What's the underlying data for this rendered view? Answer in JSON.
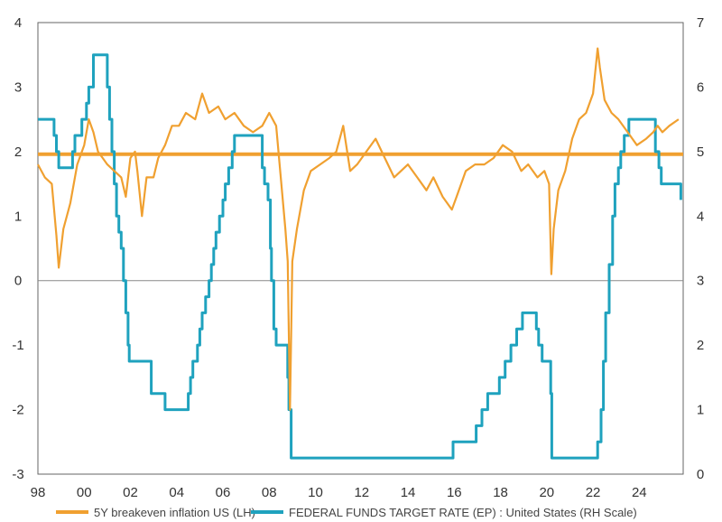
{
  "chart_data": {
    "type": "line",
    "legend": {
      "position": "bottom"
    },
    "grid": false,
    "colors": {
      "breakeven": "#F0A030",
      "fed_funds": "#1FA2BE",
      "zero_line": "#888888",
      "mean_line": "#F0A030"
    },
    "x_axis": {
      "range": [
        1998,
        2025.9
      ],
      "ticks": [
        {
          "value": 1998,
          "label": "98"
        },
        {
          "value": 2000,
          "label": "00"
        },
        {
          "value": 2002,
          "label": "02"
        },
        {
          "value": 2004,
          "label": "04"
        },
        {
          "value": 2006,
          "label": "06"
        },
        {
          "value": 2008,
          "label": "08"
        },
        {
          "value": 2010,
          "label": "10"
        },
        {
          "value": 2012,
          "label": "12"
        },
        {
          "value": 2014,
          "label": "14"
        },
        {
          "value": 2016,
          "label": "16"
        },
        {
          "value": 2018,
          "label": "18"
        },
        {
          "value": 2020,
          "label": "20"
        },
        {
          "value": 2022,
          "label": "22"
        },
        {
          "value": 2024,
          "label": "24"
        }
      ]
    },
    "y_left": {
      "range": [
        -3,
        4
      ],
      "ticks": [
        "4",
        "3",
        "2",
        "1",
        "0",
        "-1",
        "-2",
        "-3"
      ]
    },
    "y_right": {
      "range": [
        0,
        7
      ],
      "ticks": [
        "7",
        "6",
        "5",
        "4",
        "3",
        "2",
        "1",
        "0"
      ]
    },
    "reference_lines": [
      {
        "axis": "left",
        "value": 0,
        "kind": "zero"
      },
      {
        "axis": "left",
        "value": 1.96,
        "kind": "average"
      }
    ],
    "series": [
      {
        "name": "5Y breakeven inflation US (LH)",
        "axis": "left",
        "x": [
          1998.0,
          1998.3,
          1998.6,
          1998.8,
          1998.9,
          1999.1,
          1999.4,
          1999.7,
          2000.0,
          2000.2,
          2000.4,
          2000.6,
          2000.8,
          2001.0,
          2001.3,
          2001.6,
          2001.8,
          2002.0,
          2002.2,
          2002.3,
          2002.5,
          2002.7,
          2003.0,
          2003.2,
          2003.5,
          2003.8,
          2004.1,
          2004.4,
          2004.8,
          2005.1,
          2005.4,
          2005.8,
          2006.1,
          2006.5,
          2006.9,
          2007.3,
          2007.7,
          2008.0,
          2008.3,
          2008.5,
          2008.7,
          2008.8,
          2008.9,
          2009.0,
          2009.2,
          2009.5,
          2009.8,
          2010.2,
          2010.6,
          2010.9,
          2011.2,
          2011.5,
          2011.8,
          2012.2,
          2012.6,
          2013.0,
          2013.4,
          2013.7,
          2014.0,
          2014.4,
          2014.8,
          2015.1,
          2015.5,
          2015.9,
          2016.1,
          2016.5,
          2016.9,
          2017.3,
          2017.7,
          2018.1,
          2018.5,
          2018.9,
          2019.2,
          2019.6,
          2019.9,
          2020.1,
          2020.2,
          2020.3,
          2020.5,
          2020.8,
          2021.1,
          2021.4,
          2021.7,
          2022.0,
          2022.2,
          2022.3,
          2022.5,
          2022.8,
          2023.1,
          2023.5,
          2023.9,
          2024.3,
          2024.6,
          2024.8,
          2025.0,
          2025.3,
          2025.7
        ],
        "y": [
          1.8,
          1.6,
          1.5,
          0.7,
          0.2,
          0.8,
          1.2,
          1.8,
          2.1,
          2.5,
          2.3,
          2.0,
          1.9,
          1.8,
          1.7,
          1.6,
          1.3,
          1.9,
          2.0,
          1.7,
          1.0,
          1.6,
          1.6,
          1.9,
          2.1,
          2.4,
          2.4,
          2.6,
          2.5,
          2.9,
          2.6,
          2.7,
          2.5,
          2.6,
          2.4,
          2.3,
          2.4,
          2.6,
          2.4,
          1.6,
          0.8,
          0.3,
          -2.0,
          0.3,
          0.8,
          1.4,
          1.7,
          1.8,
          1.9,
          2.0,
          2.4,
          1.7,
          1.8,
          2.0,
          2.2,
          1.9,
          1.6,
          1.7,
          1.8,
          1.6,
          1.4,
          1.6,
          1.3,
          1.1,
          1.3,
          1.7,
          1.8,
          1.8,
          1.9,
          2.1,
          2.0,
          1.7,
          1.8,
          1.6,
          1.7,
          1.5,
          0.1,
          0.8,
          1.4,
          1.7,
          2.2,
          2.5,
          2.6,
          2.9,
          3.6,
          3.3,
          2.8,
          2.6,
          2.5,
          2.3,
          2.1,
          2.2,
          2.3,
          2.4,
          2.3,
          2.4,
          2.5
        ]
      },
      {
        "name": "FEDERAL FUNDS TARGET RATE (EP) : United States (RH Scale)",
        "axis": "right",
        "x": [
          1998.0,
          1998.7,
          1998.7,
          1998.8,
          1998.8,
          1998.9,
          1998.9,
          1999.5,
          1999.5,
          1999.6,
          1999.6,
          1999.9,
          1999.9,
          2000.1,
          2000.1,
          2000.2,
          2000.2,
          2000.4,
          2000.4,
          2001.0,
          2001.0,
          2001.1,
          2001.1,
          2001.2,
          2001.2,
          2001.3,
          2001.3,
          2001.4,
          2001.4,
          2001.5,
          2001.5,
          2001.6,
          2001.6,
          2001.7,
          2001.7,
          2001.8,
          2001.8,
          2001.9,
          2001.9,
          2001.95,
          2001.95,
          2002.9,
          2002.9,
          2003.5,
          2003.5,
          2004.5,
          2004.5,
          2004.6,
          2004.6,
          2004.7,
          2004.7,
          2004.9,
          2004.9,
          2005.0,
          2005.0,
          2005.1,
          2005.1,
          2005.25,
          2005.25,
          2005.4,
          2005.4,
          2005.5,
          2005.5,
          2005.6,
          2005.6,
          2005.7,
          2005.7,
          2005.85,
          2005.85,
          2006.0,
          2006.0,
          2006.1,
          2006.1,
          2006.25,
          2006.25,
          2006.4,
          2006.4,
          2006.5,
          2006.5,
          2007.7,
          2007.7,
          2007.8,
          2007.8,
          2007.95,
          2007.95,
          2008.05,
          2008.05,
          2008.1,
          2008.1,
          2008.2,
          2008.2,
          2008.3,
          2008.3,
          2008.8,
          2008.8,
          2008.85,
          2008.85,
          2008.95,
          2008.95,
          2015.95,
          2015.95,
          2016.95,
          2016.95,
          2017.2,
          2017.2,
          2017.45,
          2017.45,
          2017.95,
          2017.95,
          2018.2,
          2018.2,
          2018.45,
          2018.45,
          2018.7,
          2018.7,
          2018.95,
          2018.95,
          2019.55,
          2019.55,
          2019.65,
          2019.65,
          2019.8,
          2019.8,
          2020.17,
          2020.17,
          2020.22,
          2020.22,
          2022.2,
          2022.2,
          2022.35,
          2022.35,
          2022.45,
          2022.45,
          2022.55,
          2022.55,
          2022.7,
          2022.7,
          2022.85,
          2022.85,
          2022.95,
          2022.95,
          2023.1,
          2023.1,
          2023.2,
          2023.2,
          2023.35,
          2023.35,
          2023.55,
          2023.55,
          2024.7,
          2024.7,
          2024.85,
          2024.85,
          2024.95,
          2024.95,
          2025.8,
          2025.8
        ],
        "y": [
          5.5,
          5.5,
          5.25,
          5.25,
          5.0,
          5.0,
          4.75,
          4.75,
          5.0,
          5.0,
          5.25,
          5.25,
          5.5,
          5.5,
          5.75,
          5.75,
          6.0,
          6.0,
          6.5,
          6.5,
          6.0,
          6.0,
          5.5,
          5.5,
          5.0,
          5.0,
          4.5,
          4.5,
          4.0,
          4.0,
          3.75,
          3.75,
          3.5,
          3.5,
          3.0,
          3.0,
          2.5,
          2.5,
          2.0,
          2.0,
          1.75,
          1.75,
          1.25,
          1.25,
          1.0,
          1.0,
          1.25,
          1.25,
          1.5,
          1.5,
          1.75,
          1.75,
          2.0,
          2.0,
          2.25,
          2.25,
          2.5,
          2.5,
          2.75,
          2.75,
          3.0,
          3.0,
          3.25,
          3.25,
          3.5,
          3.5,
          3.75,
          3.75,
          4.0,
          4.0,
          4.25,
          4.25,
          4.5,
          4.5,
          4.75,
          4.75,
          5.0,
          5.0,
          5.25,
          5.25,
          4.75,
          4.75,
          4.5,
          4.5,
          4.25,
          4.25,
          3.5,
          3.5,
          3.0,
          3.0,
          2.25,
          2.25,
          2.0,
          2.0,
          1.5,
          1.5,
          1.0,
          1.0,
          0.25,
          0.25,
          0.5,
          0.5,
          0.75,
          0.75,
          1.0,
          1.0,
          1.25,
          1.25,
          1.5,
          1.5,
          1.75,
          1.75,
          2.0,
          2.0,
          2.25,
          2.25,
          2.5,
          2.5,
          2.25,
          2.25,
          2.0,
          2.0,
          1.75,
          1.75,
          1.25,
          1.25,
          0.25,
          0.25,
          0.5,
          0.5,
          1.0,
          1.0,
          1.75,
          1.75,
          2.5,
          2.5,
          3.25,
          3.25,
          4.0,
          4.0,
          4.5,
          4.5,
          4.75,
          4.75,
          5.0,
          5.0,
          5.25,
          5.25,
          5.5,
          5.5,
          5.0,
          5.0,
          4.75,
          4.75,
          4.5,
          4.5,
          4.25
        ]
      }
    ]
  }
}
